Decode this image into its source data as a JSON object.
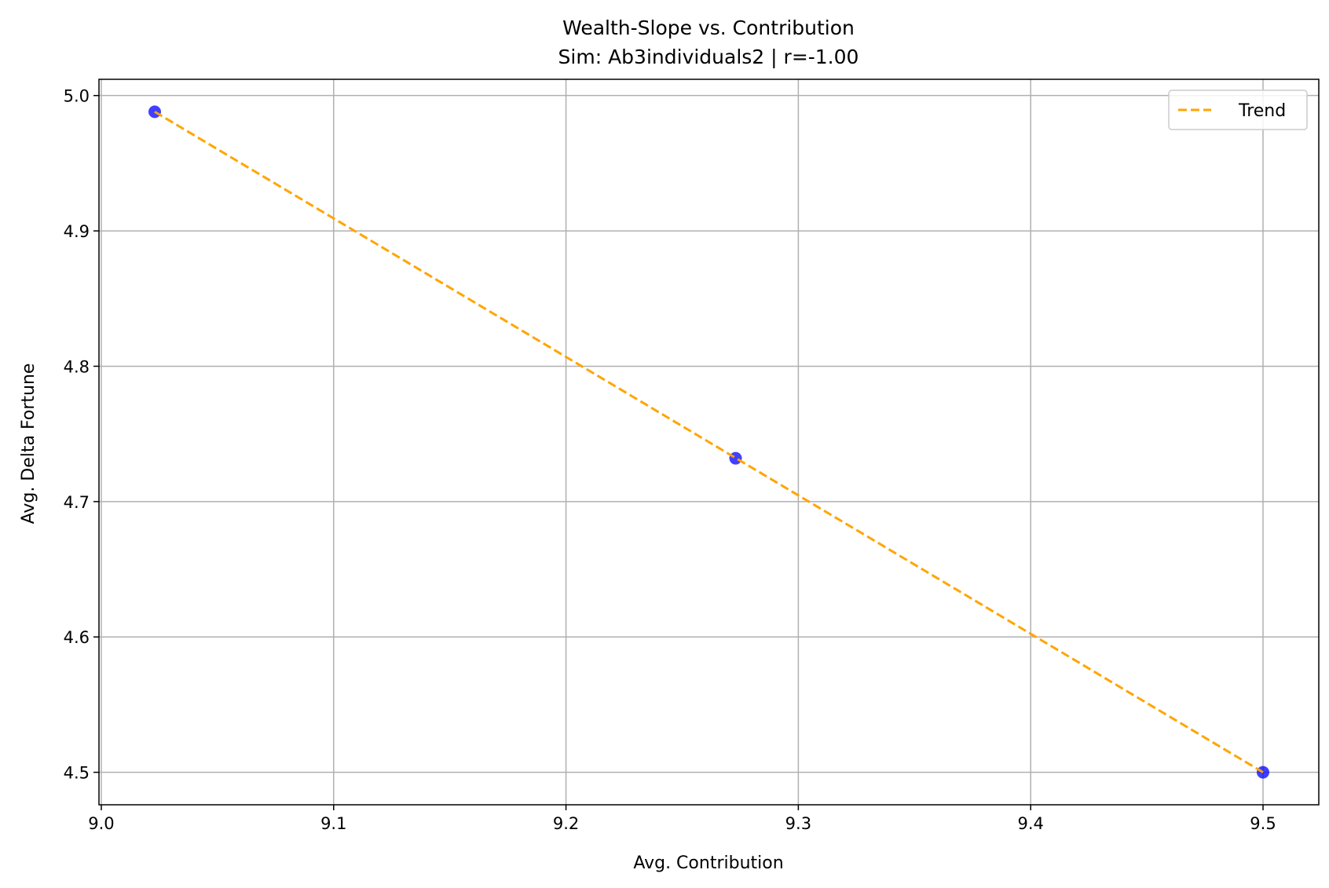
{
  "chart_data": {
    "type": "scatter",
    "title": "Wealth-Slope vs. Contribution",
    "subtitle": "Sim: Ab3individuals2 | r=-1.00",
    "xlabel": "Avg. Contribution",
    "ylabel": "Avg. Delta Fortune",
    "xlim": [
      8.999,
      9.524
    ],
    "ylim": [
      4.476,
      5.012
    ],
    "xticks": [
      "9.0",
      "9.1",
      "9.2",
      "9.3",
      "9.4",
      "9.5"
    ],
    "yticks": [
      "4.5",
      "4.6",
      "4.7",
      "4.8",
      "4.9",
      "5.0"
    ],
    "grid": true,
    "legend_position": "top-right",
    "series": [
      {
        "kind": "points",
        "color": "#0000ff",
        "x": [
          9.023,
          9.273,
          9.5
        ],
        "y": [
          4.988,
          4.732,
          4.5
        ]
      },
      {
        "kind": "line",
        "name": "Trend",
        "style": "dashed",
        "color": "#ffa500",
        "x": [
          9.023,
          9.5
        ],
        "y": [
          4.988,
          4.5
        ]
      }
    ]
  }
}
